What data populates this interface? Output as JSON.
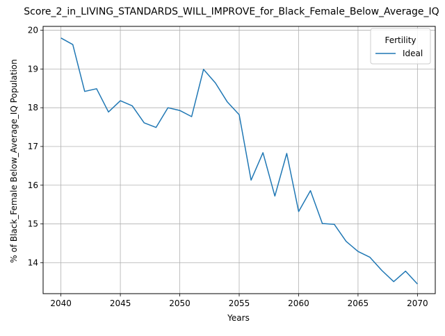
{
  "chart_data": {
    "type": "line",
    "title": "Score_2_in_LIVING_STANDARDS_WILL_IMPROVE_for_Black_Female_Below_Average_IQ",
    "xlabel": "Years",
    "ylabel": "% of Black_Female Below_Average_IQ Population",
    "xlim": [
      2038.5,
      2071.5
    ],
    "ylim": [
      13.2,
      20.1
    ],
    "xticks": [
      2040,
      2045,
      2050,
      2055,
      2060,
      2065,
      2070
    ],
    "yticks": [
      14,
      15,
      16,
      17,
      18,
      19,
      20
    ],
    "grid": true,
    "legend": {
      "title": "Fertility",
      "placement": "top-right"
    },
    "series": [
      {
        "name": "Ideal",
        "color": "#1f77b4",
        "x": [
          2040,
          2041,
          2042,
          2043,
          2044,
          2045,
          2046,
          2047,
          2048,
          2049,
          2050,
          2051,
          2052,
          2053,
          2054,
          2055,
          2056,
          2057,
          2058,
          2059,
          2060,
          2061,
          2062,
          2063,
          2064,
          2065,
          2066,
          2067,
          2068,
          2069,
          2070
        ],
        "y": [
          19.8,
          19.63,
          18.42,
          18.49,
          17.89,
          18.18,
          18.05,
          17.61,
          17.49,
          18.0,
          17.93,
          17.77,
          18.99,
          18.64,
          18.15,
          17.82,
          16.13,
          16.84,
          15.72,
          16.82,
          15.32,
          15.86,
          15.01,
          14.99,
          14.55,
          14.29,
          14.14,
          13.8,
          13.51,
          13.78,
          13.45
        ]
      }
    ]
  }
}
